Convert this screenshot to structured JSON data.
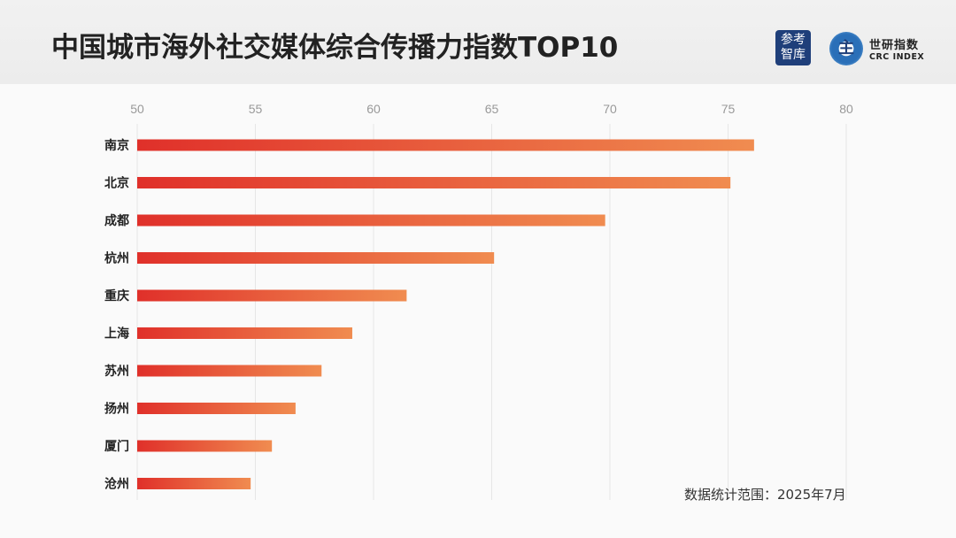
{
  "header": {
    "title": "中国城市海外社交媒体综合传播力指数TOP10",
    "logo1_text": "参考智库",
    "logo2_cn": "世研指数",
    "logo2_en": "CRC INDEX"
  },
  "note": "数据统计范围：2025年7月",
  "colors": {
    "bar_start": "#e0302a",
    "bar_end": "#f08c50",
    "grid": "#e6e6e6",
    "tick": "#999999"
  },
  "chart_data": {
    "type": "bar",
    "orientation": "horizontal",
    "categories": [
      "南京",
      "北京",
      "成都",
      "杭州",
      "重庆",
      "上海",
      "苏州",
      "扬州",
      "厦门",
      "沧州"
    ],
    "values": [
      76.1,
      75.1,
      69.8,
      65.1,
      61.4,
      59.1,
      57.8,
      56.7,
      55.7,
      54.8
    ],
    "xlim": [
      50,
      80
    ],
    "xticks": [
      50,
      55,
      60,
      65,
      70,
      75,
      80
    ],
    "axis_position": "top",
    "grid": true
  }
}
